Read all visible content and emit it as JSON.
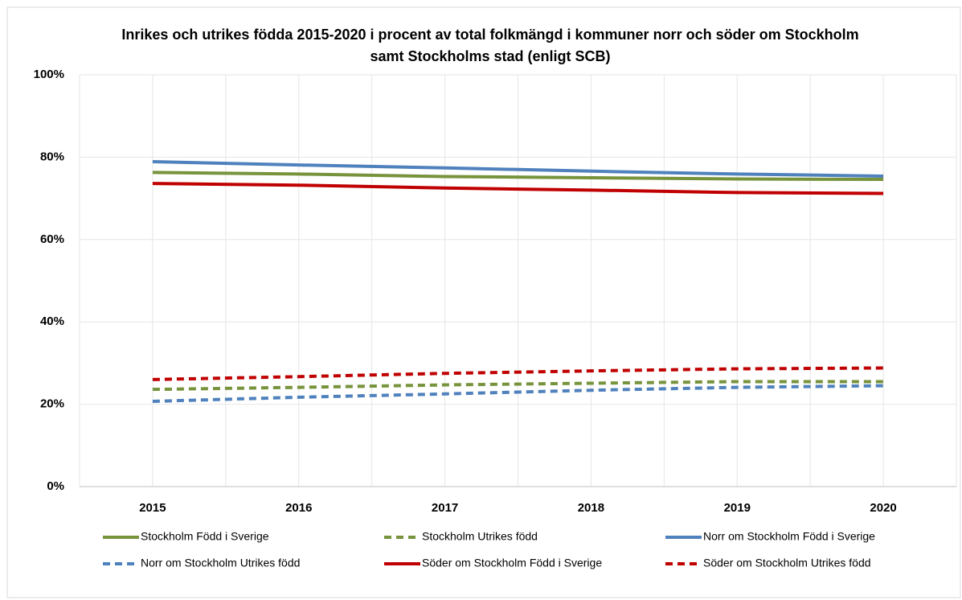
{
  "chart_data": {
    "type": "line",
    "title": "Inrikes och utrikes födda 2015-2020 i procent av total folkmängd i kommuner norr och söder om Stockholm samt Stockholms stad (enligt SCB)",
    "categories": [
      "2015",
      "2016",
      "2017",
      "2018",
      "2019",
      "2020"
    ],
    "ylim": [
      0,
      100
    ],
    "yticks": [
      {
        "value": 0,
        "label": "0%"
      },
      {
        "value": 20,
        "label": "20%"
      },
      {
        "value": 40,
        "label": "40%"
      },
      {
        "value": 60,
        "label": "60%"
      },
      {
        "value": 80,
        "label": "80%"
      },
      {
        "value": 100,
        "label": "100%"
      }
    ],
    "grid": true,
    "legend": "bottom",
    "series": [
      {
        "name": "Stockholm Född i Sverige",
        "color": "#77933c",
        "dashed": false,
        "values": [
          76.3,
          75.9,
          75.3,
          75.0,
          74.7,
          74.6
        ]
      },
      {
        "name": "Stockholm Utrikes född",
        "color": "#77933c",
        "dashed": true,
        "values": [
          23.6,
          24.1,
          24.7,
          25.1,
          25.5,
          25.5
        ]
      },
      {
        "name": "Norr om Stockholm Född i Sverige",
        "color": "#4f81bd",
        "dashed": false,
        "values": [
          78.9,
          78.1,
          77.4,
          76.6,
          75.9,
          75.4
        ]
      },
      {
        "name": "Norr om Stockholm Utrikes född",
        "color": "#4f81bd",
        "dashed": true,
        "values": [
          20.7,
          21.7,
          22.5,
          23.4,
          24.1,
          24.5
        ]
      },
      {
        "name": "Söder om Stockholm Född i Sverige",
        "color": "#c00000",
        "dashed": false,
        "values": [
          73.6,
          73.2,
          72.5,
          72.0,
          71.4,
          71.2
        ]
      },
      {
        "name": "Söder om Stockholm Utrikes född",
        "color": "#c00000",
        "dashed": true,
        "values": [
          26.0,
          26.7,
          27.5,
          28.1,
          28.6,
          28.8
        ]
      }
    ]
  }
}
